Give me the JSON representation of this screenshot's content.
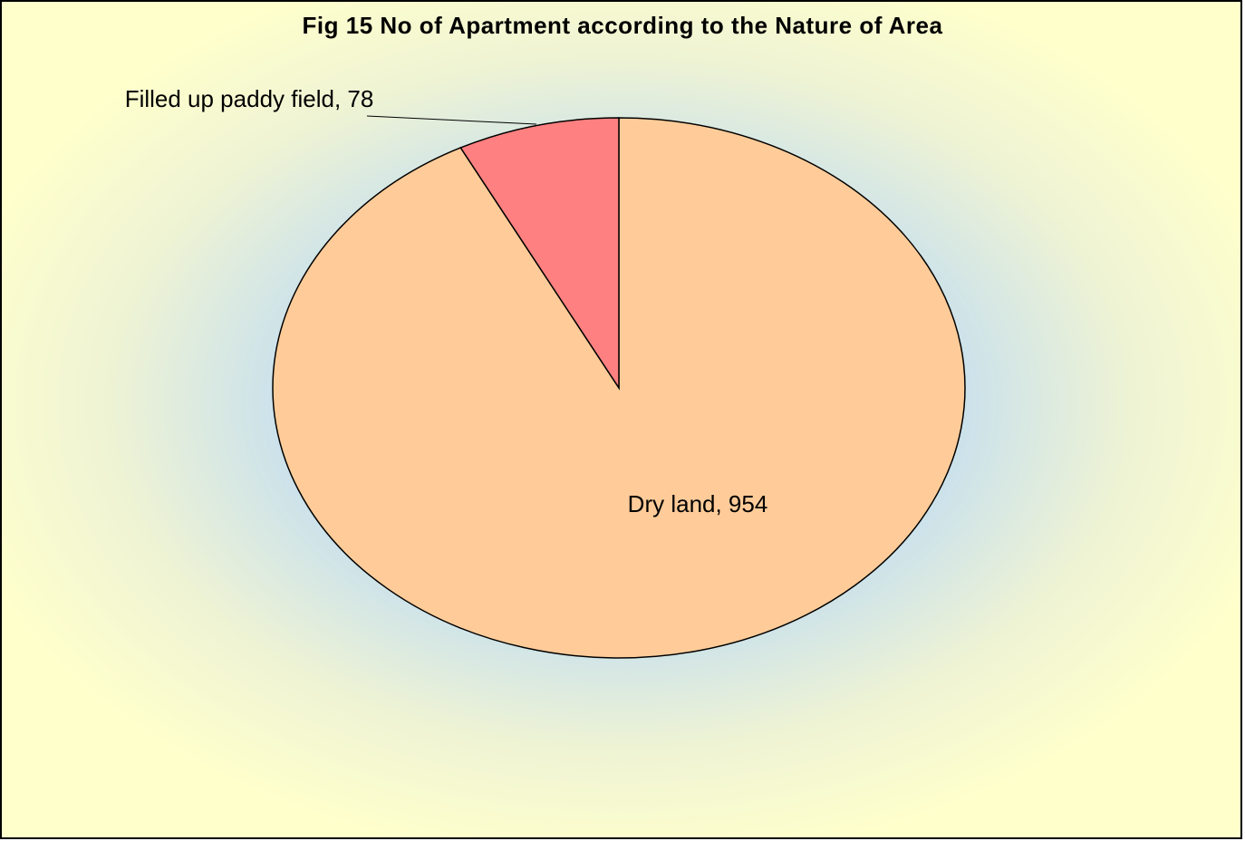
{
  "chart_data": {
    "type": "pie",
    "title": "Fig 15  No of Apartment according to the Nature of Area",
    "values": [
      954,
      78
    ],
    "value_labels": [
      "Dry land, 954",
      "Filled up paddy field, 78"
    ],
    "colors": [
      "#ffcc99",
      "#ff8080"
    ]
  }
}
